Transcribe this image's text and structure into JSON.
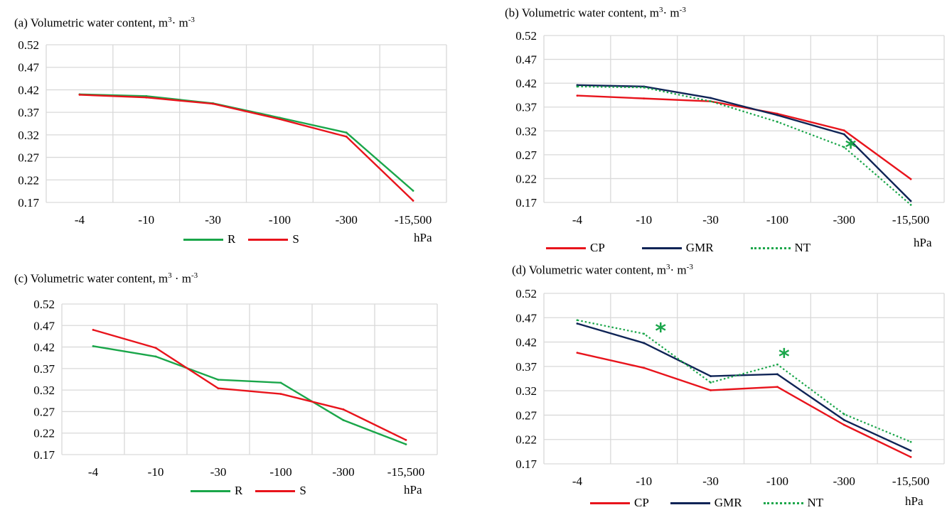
{
  "chart_data": [
    {
      "id": "a",
      "type": "line",
      "title_prefix": "(a) Volumetric water content, m",
      "title_mid": "· m",
      "title_sup": "3",
      "title_sup2": "-3",
      "categories": [
        "-4",
        "-10",
        "-30",
        "-100",
        "-300",
        "-15,500"
      ],
      "x_unit": "hPa",
      "ylim": [
        0.17,
        0.52
      ],
      "yticks": [
        "0.52",
        "0.47",
        "0.42",
        "0.37",
        "0.32",
        "0.27",
        "0.22",
        "0.17"
      ],
      "grid": true,
      "legend_position": "bottom",
      "series": [
        {
          "name": "R",
          "color": "#1aa64a",
          "dash": "solid",
          "values": [
            0.41,
            0.406,
            0.39,
            0.358,
            0.325,
            0.196
          ]
        },
        {
          "name": "S",
          "color": "#e8141c",
          "dash": "solid",
          "values": [
            0.409,
            0.403,
            0.389,
            0.355,
            0.316,
            0.174
          ]
        }
      ],
      "annotations": []
    },
    {
      "id": "b",
      "type": "line",
      "title_prefix": "(b) Volumetric water content, m",
      "title_mid": "· m",
      "title_sup": "3",
      "title_sup2": "-3",
      "categories": [
        "-4",
        "-10",
        "-30",
        "-100",
        "-300",
        "-15,500"
      ],
      "x_unit": "hPa",
      "ylim": [
        0.17,
        0.52
      ],
      "yticks": [
        "0.52",
        "0.47",
        "0.42",
        "0.37",
        "0.32",
        "0.27",
        "0.22",
        "0.17"
      ],
      "grid": true,
      "legend_position": "bottom",
      "series": [
        {
          "name": "CP",
          "color": "#e8141c",
          "dash": "solid",
          "values": [
            0.394,
            0.388,
            0.382,
            0.356,
            0.321,
            0.219
          ]
        },
        {
          "name": "GMR",
          "color": "#0f2456",
          "dash": "solid",
          "values": [
            0.416,
            0.413,
            0.389,
            0.353,
            0.313,
            0.173
          ]
        },
        {
          "name": "NT",
          "color": "#1aa64a",
          "dash": "dotted",
          "values": [
            0.413,
            0.411,
            0.382,
            0.339,
            0.286,
            0.165
          ]
        }
      ],
      "annotations": [
        {
          "text": "*",
          "category_index": 4.1,
          "value": 0.291
        }
      ]
    },
    {
      "id": "c",
      "type": "line",
      "title_prefix": "(c) Volumetric water content, m",
      "title_mid": " · m",
      "title_sup": "3",
      "title_sup2": "-3",
      "categories": [
        "-4",
        "-10",
        "-30",
        "-100",
        "-300",
        "-15,500"
      ],
      "x_unit": "hPa",
      "ylim": [
        0.17,
        0.52
      ],
      "yticks": [
        "0.52",
        "0.47",
        "0.42",
        "0.37",
        "0.32",
        "0.27",
        "0.22",
        "0.17"
      ],
      "grid": true,
      "legend_position": "bottom",
      "series": [
        {
          "name": "R",
          "color": "#1aa64a",
          "dash": "solid",
          "values": [
            0.422,
            0.398,
            0.344,
            0.337,
            0.25,
            0.194
          ]
        },
        {
          "name": "S",
          "color": "#e8141c",
          "dash": "solid",
          "values": [
            0.46,
            0.418,
            0.324,
            0.311,
            0.275,
            0.204
          ]
        }
      ],
      "annotations": []
    },
    {
      "id": "d",
      "type": "line",
      "title_prefix": "(d) Volumetric water content,  m",
      "title_mid": "· m",
      "title_sup": "3",
      "title_sup2": "-3",
      "categories": [
        "-4",
        "-10",
        "-30",
        "-100",
        "-300",
        "-15,500"
      ],
      "x_unit": "hPa",
      "ylim": [
        0.17,
        0.52
      ],
      "yticks": [
        "0.52",
        "0.47",
        "0.42",
        "0.37",
        "0.32",
        "0.27",
        "0.22",
        "0.17"
      ],
      "grid": true,
      "legend_position": "bottom",
      "series": [
        {
          "name": "CP",
          "color": "#e8141c",
          "dash": "solid",
          "values": [
            0.398,
            0.367,
            0.321,
            0.328,
            0.25,
            0.184
          ]
        },
        {
          "name": "GMR",
          "color": "#0f2456",
          "dash": "solid",
          "values": [
            0.458,
            0.418,
            0.35,
            0.354,
            0.26,
            0.197
          ]
        },
        {
          "name": "NT",
          "color": "#1aa64a",
          "dash": "dotted",
          "values": [
            0.465,
            0.437,
            0.337,
            0.374,
            0.272,
            0.215
          ]
        }
      ],
      "annotations": [
        {
          "text": "*",
          "category_index": 1.25,
          "value": 0.448
        },
        {
          "text": "*",
          "category_index": 3.1,
          "value": 0.395
        }
      ]
    }
  ]
}
